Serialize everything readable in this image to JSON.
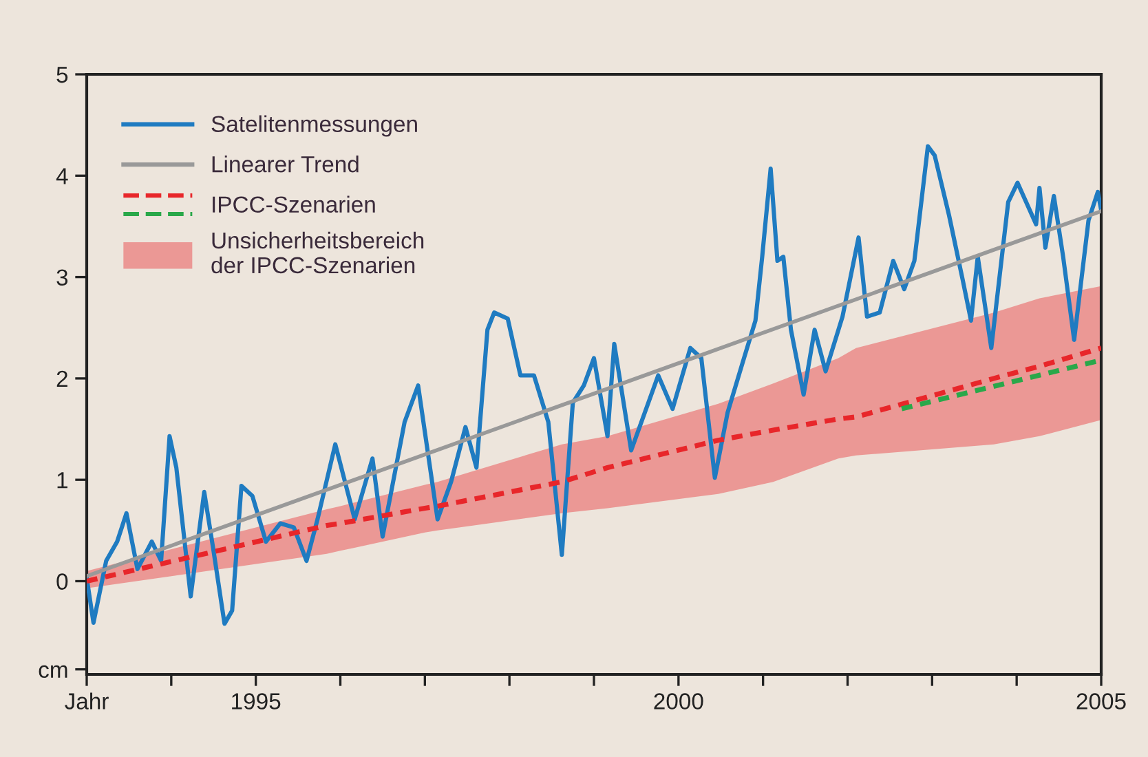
{
  "chart_data": {
    "type": "line",
    "xlim": [
      1993,
      2005
    ],
    "xticks": [
      {
        "value": 1993,
        "label": "Jahr"
      },
      {
        "value": 1994,
        "label": null
      },
      1995,
      {
        "value": 1996,
        "label": null
      },
      {
        "value": 1997,
        "label": null
      },
      {
        "value": 1998,
        "label": null
      },
      {
        "value": 1999,
        "label": null
      },
      2000,
      {
        "value": 2001,
        "label": null
      },
      {
        "value": 2002,
        "label": null
      },
      {
        "value": 2003,
        "label": null
      },
      {
        "value": 2004,
        "label": null
      },
      2005
    ],
    "ylim": [
      -0.92,
      5
    ],
    "yticks": [
      {
        "value": -0.87,
        "label": "cm"
      },
      0,
      1,
      2,
      3,
      4,
      5
    ],
    "grid": false,
    "legend": "top left",
    "series": [
      {
        "name": "Satelitenmessungen",
        "color": "#1f7bc1",
        "x": [
          1993.0,
          1993.08,
          1993.23,
          1993.36,
          1993.47,
          1993.6,
          1993.77,
          1993.88,
          1993.98,
          1994.06,
          1994.23,
          1994.39,
          1994.5,
          1994.63,
          1994.72,
          1994.83,
          1994.96,
          1995.12,
          1995.29,
          1995.45,
          1995.6,
          1995.73,
          1995.94,
          1996.17,
          1996.38,
          1996.5,
          1996.76,
          1996.92,
          1997.15,
          1997.31,
          1997.48,
          1997.61,
          1997.74,
          1997.82,
          1997.98,
          1998.13,
          1998.29,
          1998.46,
          1998.62,
          1998.75,
          1998.88,
          1999.0,
          1999.16,
          1999.24,
          1999.44,
          1999.76,
          1999.93,
          2000.14,
          2000.27,
          2000.43,
          2000.58,
          2000.76,
          2000.91,
          2000.99,
          2001.09,
          2001.17,
          2001.24,
          2001.33,
          2001.48,
          2001.61,
          2001.74,
          2001.94,
          2002.13,
          2002.23,
          2002.38,
          2002.54,
          2002.67,
          2002.79,
          2002.95,
          2003.03,
          2003.2,
          2003.36,
          2003.46,
          2003.54,
          2003.7,
          2003.9,
          2004.01,
          2004.23,
          2004.27,
          2004.34,
          2004.44,
          2004.55,
          2004.68,
          2004.85,
          2004.96,
          2005.0
        ],
        "values": [
          0.03,
          -0.41,
          0.2,
          0.39,
          0.67,
          0.12,
          0.39,
          0.2,
          1.43,
          1.12,
          -0.15,
          0.88,
          0.3,
          -0.42,
          -0.29,
          0.94,
          0.84,
          0.39,
          0.57,
          0.53,
          0.2,
          0.61,
          1.35,
          0.61,
          1.21,
          0.44,
          1.57,
          1.93,
          0.61,
          0.98,
          1.52,
          1.12,
          2.48,
          2.65,
          2.59,
          2.03,
          2.03,
          1.57,
          0.26,
          1.76,
          1.93,
          2.2,
          1.43,
          2.34,
          1.29,
          2.03,
          1.7,
          2.3,
          2.2,
          1.02,
          1.66,
          2.16,
          2.57,
          3.2,
          4.07,
          3.16,
          3.2,
          2.48,
          1.84,
          2.48,
          2.07,
          2.61,
          3.39,
          2.61,
          2.65,
          3.16,
          2.88,
          3.16,
          4.29,
          4.2,
          3.61,
          2.98,
          2.57,
          3.2,
          2.3,
          3.74,
          3.93,
          3.52,
          3.88,
          3.29,
          3.8,
          3.2,
          2.38,
          3.56,
          3.84,
          3.66
        ]
      },
      {
        "name": "Linearer Trend",
        "color": "#999999",
        "x": [
          1993,
          2005
        ],
        "values": [
          0.05,
          3.65
        ]
      },
      {
        "name": "IPCC-Szenarien",
        "color": "#e8262a",
        "line_style": "dashed",
        "x": [
          1993,
          1995.84,
          1996.0,
          1997.0,
          1997.15,
          1998.62,
          1999.16,
          2000.47,
          2001.12,
          2001.89,
          2002.1,
          2003.73,
          2004.27,
          2005
        ],
        "values": [
          0,
          0.55,
          0.57,
          0.72,
          0.74,
          0.98,
          1.12,
          1.39,
          1.49,
          1.6,
          1.62,
          2.0,
          2.12,
          2.3
        ],
        "lower": [
          -0.07,
          0.27,
          0.3,
          0.48,
          0.5,
          0.67,
          0.72,
          0.86,
          0.98,
          1.21,
          1.24,
          1.35,
          1.43,
          1.59
        ],
        "upper": [
          0.1,
          0.71,
          0.74,
          0.95,
          0.98,
          1.35,
          1.43,
          1.75,
          1.95,
          2.2,
          2.3,
          2.65,
          2.79,
          2.91
        ]
      },
      {
        "color": "#2aa84a",
        "line_style": "dashed",
        "x": [
          2002.64,
          2005
        ],
        "values": [
          1.7,
          2.18
        ]
      }
    ],
    "annotations": [
      "Unsicherheitsbereich\nder IPCC-Szenarien"
    ]
  }
}
